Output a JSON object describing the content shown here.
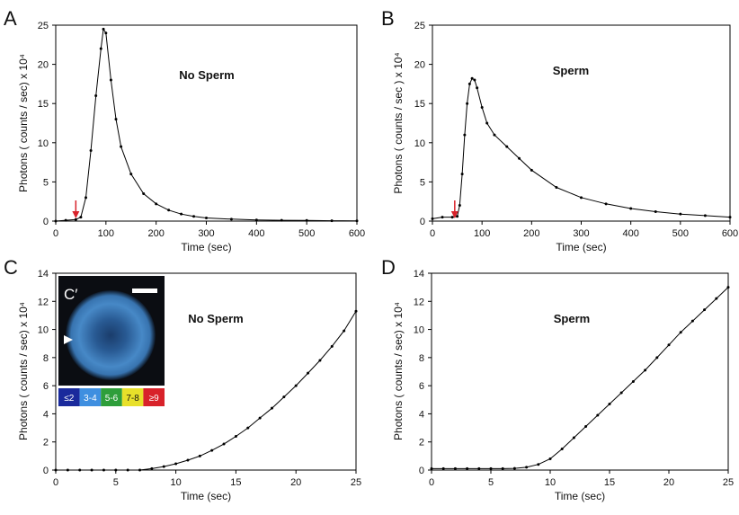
{
  "chart_data": [
    {
      "type": "line",
      "panel": "A",
      "annotation": "No Sperm",
      "xlabel": "Time (sec)",
      "ylabel": "Photons ( counts / sec) x 10⁴",
      "xlim": [
        0,
        600
      ],
      "ylim": [
        0,
        25
      ],
      "xticks": [
        0,
        100,
        200,
        300,
        400,
        500,
        600
      ],
      "yticks": [
        0,
        5,
        10,
        15,
        20,
        25
      ],
      "arrow_x": 40,
      "series": [
        {
          "color": "#000000",
          "x": [
            0,
            20,
            40,
            50,
            60,
            70,
            80,
            90,
            95,
            100,
            110,
            120,
            130,
            150,
            175,
            200,
            225,
            250,
            275,
            300,
            350,
            400,
            450,
            500,
            550,
            600
          ],
          "y": [
            0,
            0.1,
            0.2,
            0.5,
            3,
            9,
            16,
            22,
            24.5,
            24,
            18,
            13,
            9.5,
            6,
            3.5,
            2.2,
            1.4,
            0.9,
            0.6,
            0.4,
            0.25,
            0.15,
            0.1,
            0.08,
            0.05,
            0.03
          ]
        }
      ]
    },
    {
      "type": "line",
      "panel": "B",
      "annotation": "Sperm",
      "xlabel": "Time (sec)",
      "ylabel": "Photons ( counts / sec ) x 10⁴",
      "xlim": [
        0,
        600
      ],
      "ylim": [
        0,
        25
      ],
      "xticks": [
        0,
        100,
        200,
        300,
        400,
        500,
        600
      ],
      "yticks": [
        0,
        5,
        10,
        15,
        20,
        25
      ],
      "arrow_x": 45,
      "series": [
        {
          "color": "#000000",
          "x": [
            0,
            20,
            40,
            50,
            55,
            60,
            65,
            70,
            75,
            80,
            85,
            90,
            100,
            110,
            125,
            150,
            175,
            200,
            250,
            300,
            350,
            400,
            450,
            500,
            550,
            600
          ],
          "y": [
            0.3,
            0.5,
            0.5,
            0.6,
            2,
            6,
            11,
            15,
            17.5,
            18.2,
            18,
            17,
            14.5,
            12.5,
            11,
            9.5,
            8,
            6.5,
            4.3,
            3,
            2.2,
            1.6,
            1.2,
            0.9,
            0.7,
            0.5
          ]
        }
      ]
    },
    {
      "type": "line",
      "panel": "C",
      "inset_label": "C′",
      "annotation": "No Sperm",
      "xlabel": "Time (sec)",
      "ylabel": "Photons ( counts / sec) x 10⁴",
      "xlim": [
        0,
        25
      ],
      "ylim": [
        0,
        14
      ],
      "xticks": [
        0,
        5,
        10,
        15,
        20,
        25
      ],
      "yticks": [
        0,
        2,
        4,
        6,
        8,
        10,
        12,
        14
      ],
      "series": [
        {
          "color": "#000000",
          "x": [
            0,
            1,
            2,
            3,
            4,
            5,
            6,
            7,
            8,
            9,
            10,
            11,
            12,
            13,
            14,
            15,
            16,
            17,
            18,
            19,
            20,
            21,
            22,
            23,
            24,
            25
          ],
          "y": [
            0,
            0,
            0,
            0,
            0,
            0,
            0,
            0,
            0.1,
            0.25,
            0.45,
            0.7,
            1.0,
            1.4,
            1.85,
            2.4,
            3.0,
            3.7,
            4.4,
            5.2,
            6.0,
            6.9,
            7.8,
            8.8,
            9.9,
            11.3
          ]
        }
      ]
    },
    {
      "type": "line",
      "panel": "D",
      "annotation": "Sperm",
      "xlabel": "Time (sec)",
      "ylabel": "Photons ( counts / sec) x 10⁴",
      "xlim": [
        0,
        25
      ],
      "ylim": [
        0,
        14
      ],
      "xticks": [
        0,
        5,
        10,
        15,
        20,
        25
      ],
      "yticks": [
        0,
        2,
        4,
        6,
        8,
        10,
        12,
        14
      ],
      "series": [
        {
          "color": "#000000",
          "x": [
            0,
            1,
            2,
            3,
            4,
            5,
            6,
            7,
            8,
            9,
            10,
            11,
            12,
            13,
            14,
            15,
            16,
            17,
            18,
            19,
            20,
            21,
            22,
            23,
            24,
            25
          ],
          "y": [
            0.1,
            0.1,
            0.1,
            0.1,
            0.1,
            0.1,
            0.1,
            0.12,
            0.2,
            0.4,
            0.8,
            1.5,
            2.3,
            3.1,
            3.9,
            4.7,
            5.5,
            6.3,
            7.1,
            8.0,
            8.9,
            9.8,
            10.6,
            11.4,
            12.2,
            13.0
          ]
        }
      ]
    }
  ],
  "colorbar": {
    "labels": [
      "≤2",
      "3-4",
      "5-6",
      "7-8",
      "≥9"
    ],
    "colors": [
      "#1a2a9c",
      "#3f8fe0",
      "#2e9e3a",
      "#e8e02a",
      "#d8222a"
    ]
  }
}
